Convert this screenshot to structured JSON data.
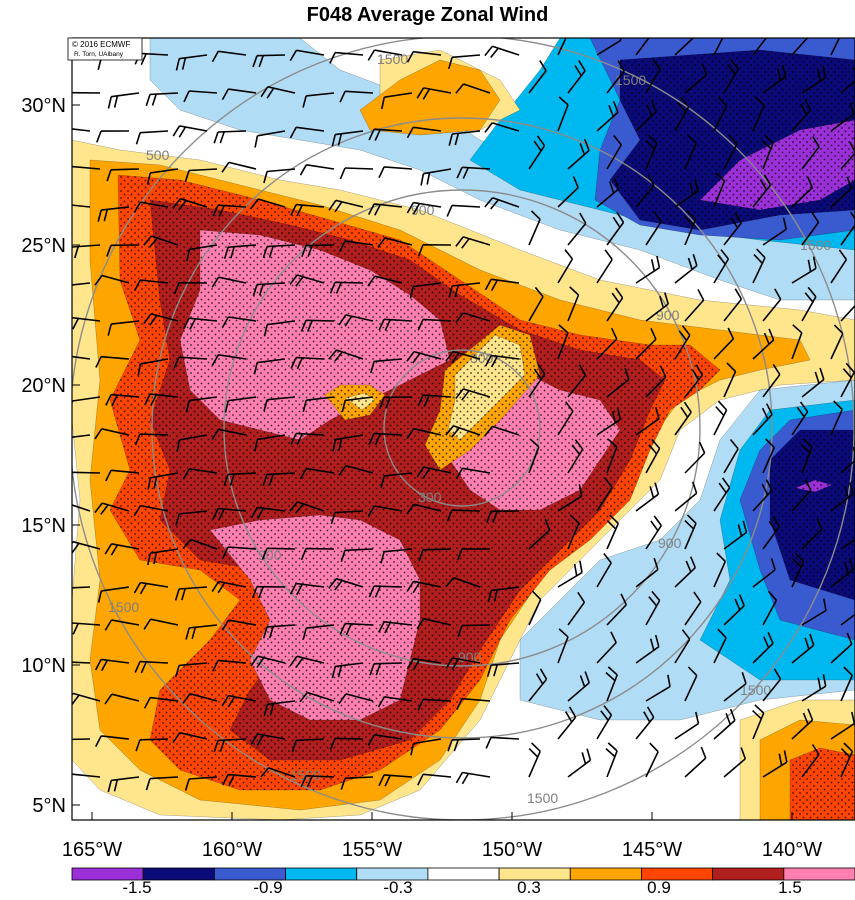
{
  "title": "F048 Average Zonal Wind",
  "credit": {
    "line1": "© 2016 ECMWF",
    "line2": "R. Torn, UAlbany"
  },
  "axes": {
    "lat_labels": [
      "30°N",
      "25°N",
      "20°N",
      "15°N",
      "10°N",
      "5°N"
    ],
    "lat_values": [
      30,
      25,
      20,
      15,
      10,
      5
    ],
    "lon_labels": [
      "165°W",
      "160°W",
      "155°W",
      "150°W",
      "145°W",
      "140°W"
    ],
    "lon_values": [
      -165,
      -160,
      -155,
      -150,
      -145,
      -140
    ]
  },
  "range_rings": {
    "labels": [
      "300",
      "300",
      "900",
      "900",
      "900",
      "900",
      "900",
      "1500",
      "1500",
      "1500",
      "1500",
      "1500",
      "1500",
      "1500",
      "500"
    ]
  },
  "colorbar": {
    "labels": [
      "-1.5",
      "-0.9",
      "-0.3",
      "0.3",
      "0.9",
      "1.5"
    ],
    "colors": [
      "#9b30d8",
      "#0a0a78",
      "#3a5ad0",
      "#00b8f0",
      "#b0dcf5",
      "#ffffff",
      "#ffe58c",
      "#ffa500",
      "#ff4500",
      "#b01e1e",
      "#ff80b0"
    ]
  },
  "fill_colors": {
    "purple": "#9b30d8",
    "navy": "#0a0a78",
    "blue": "#3a5ad0",
    "cyan": "#00b8f0",
    "lightblue": "#b0dcf5",
    "yellow": "#ffe58c",
    "orange": "#ffa500",
    "red": "#ff4500",
    "maroon": "#b01e1e",
    "pink": "#ff80b0"
  }
}
